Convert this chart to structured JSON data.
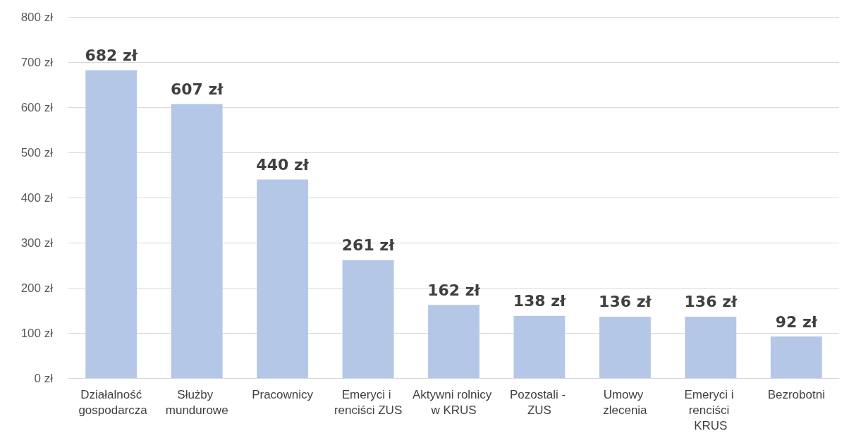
{
  "chart_data": {
    "type": "bar",
    "categories": [
      "Działalność gospodarcza",
      "Służby mundurowe",
      "Pracownicy",
      "Emeryci i renciści ZUS",
      "Aktywni rolnicy w KRUS",
      "Pozostali - ZUS",
      "Umowy zlecenia",
      "Emeryci i renciści KRUS",
      "Bezrobotni"
    ],
    "values": [
      682,
      607,
      440,
      261,
      162,
      138,
      136,
      136,
      92
    ],
    "value_labels": [
      "682 zł",
      "607 zł",
      "440 zł",
      "261 zł",
      "162 zł",
      "138 zł",
      "136 zł",
      "136 zł",
      "92 zł"
    ],
    "color": "#b4c7e7",
    "ylim": [
      0,
      800
    ],
    "yticks": [
      {
        "value": 0,
        "label": "0 zł"
      },
      {
        "value": 100,
        "label": "100 zł"
      },
      {
        "value": 200,
        "label": "200 zł"
      },
      {
        "value": 300,
        "label": "300 zł"
      },
      {
        "value": 400,
        "label": "400 zł"
      },
      {
        "value": 500,
        "label": "500 zł"
      },
      {
        "value": 600,
        "label": "600 zł"
      },
      {
        "value": 700,
        "label": "700 zł"
      },
      {
        "value": 800,
        "label": "800 zł"
      }
    ],
    "grid": "y"
  }
}
